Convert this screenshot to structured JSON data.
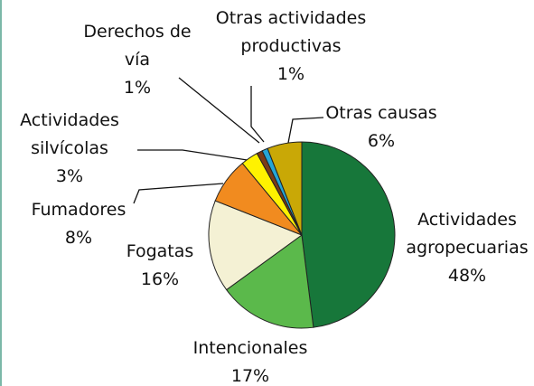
{
  "chart_data": {
    "type": "pie",
    "categories": [
      "Actividades agropecuarias",
      "Intencionales",
      "Fogatas",
      "Fumadores",
      "Actividades silvícolas",
      "Derechos de vía",
      "Otras actividades productivas",
      "Otras causas"
    ],
    "values": [
      48,
      17,
      16,
      8,
      3,
      1,
      1,
      6
    ],
    "value_labels": [
      "48%",
      "17%",
      "16%",
      "8%",
      "3%",
      "1%",
      "1%",
      "6%"
    ],
    "colors": [
      "#17773a",
      "#5bb94b",
      "#f4f1d4",
      "#f18b1f",
      "#fff200",
      "#7b3b17",
      "#25a5d6",
      "#c9a806"
    ]
  }
}
